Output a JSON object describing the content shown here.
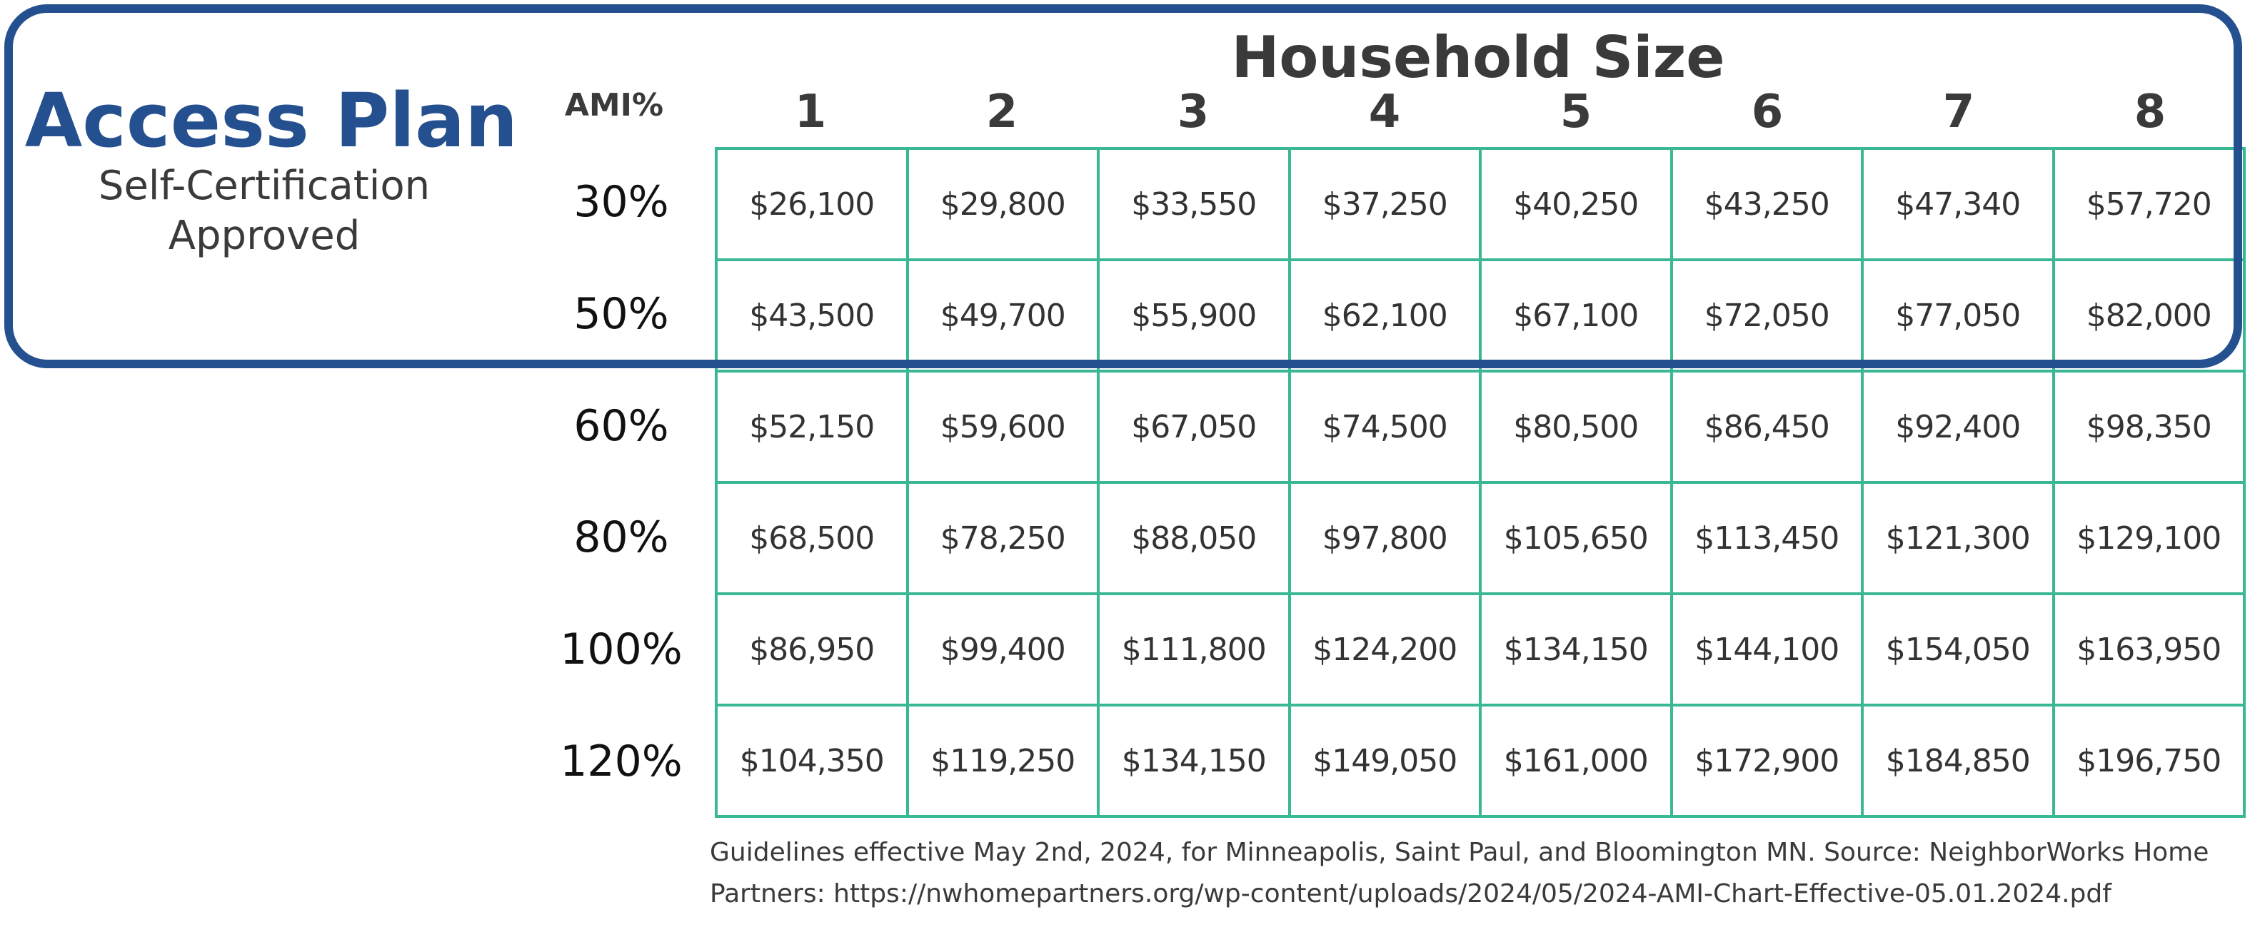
{
  "plan": {
    "title": "Access Plan",
    "subtitle_line1": "Self-Certification",
    "subtitle_line2": "Approved"
  },
  "chart_data": {
    "type": "table",
    "title": "Household Size",
    "row_header": "AMI%",
    "columns": [
      "1",
      "2",
      "3",
      "4",
      "5",
      "6",
      "7",
      "8"
    ],
    "rows": [
      {
        "label": "30%",
        "values": [
          "$26,100",
          "$29,800",
          "$33,550",
          "$37,250",
          "$40,250",
          "$43,250",
          "$47,340",
          "$57,720"
        ]
      },
      {
        "label": "50%",
        "values": [
          "$43,500",
          "$49,700",
          "$55,900",
          "$62,100",
          "$67,100",
          "$72,050",
          "$77,050",
          "$82,000"
        ]
      },
      {
        "label": "60%",
        "values": [
          "$52,150",
          "$59,600",
          "$67,050",
          "$74,500",
          "$80,500",
          "$86,450",
          "$92,400",
          "$98,350"
        ]
      },
      {
        "label": "80%",
        "values": [
          "$68,500",
          "$78,250",
          "$88,050",
          "$97,800",
          "$105,650",
          "$113,450",
          "$121,300",
          "$129,100"
        ]
      },
      {
        "label": "100%",
        "values": [
          "$86,950",
          "$99,400",
          "$111,800",
          "$124,200",
          "$134,150",
          "$144,100",
          "$154,050",
          "$163,950"
        ]
      },
      {
        "label": "120%",
        "values": [
          "$104,350",
          "$119,250",
          "$134,150",
          "$149,050",
          "$161,000",
          "$172,900",
          "$184,850",
          "$196,750"
        ]
      }
    ],
    "highlighted_rows": [
      "30%",
      "50%"
    ]
  },
  "footnote": {
    "line1": "Guidelines effective May 2nd, 2024, for Minneapolis, Saint Paul, and Bloomington MN. Source: NeighborWorks Home",
    "line2": "Partners: https://nwhomepartners.org/wp-content/uploads/2024/05/2024-AMI-Chart-Effective-05.01.2024.pdf"
  },
  "colors": {
    "brand_blue": "#25508f",
    "grid_green": "#3ab795",
    "text": "#333333"
  }
}
